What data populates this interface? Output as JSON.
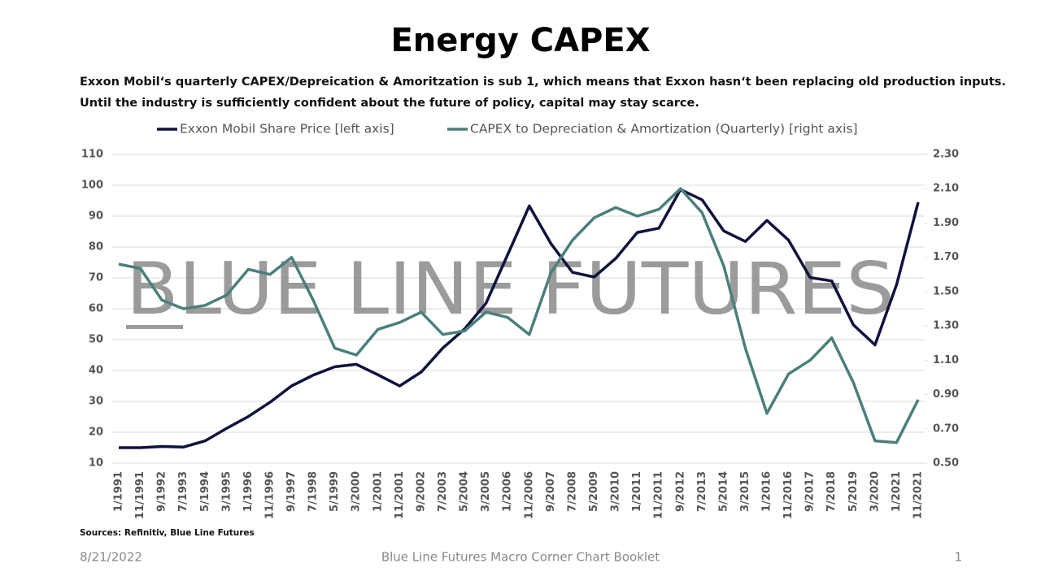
{
  "chart_data": {
    "type": "line",
    "title": "Energy CAPEX",
    "subtitle": [
      "Exxon Mobil‘s quarterly CAPEX/Depreication & Amoritzation is sub 1, which means that Exxon hasn‘t been replacing old production inputs.",
      "Until the industry is sufficiently confident about the future of policy, capital may stay scarce."
    ],
    "watermark": "BLUE LINE FUTURES",
    "categories": [
      "1/1991",
      "11/1991",
      "9/1992",
      "7/1993",
      "5/1994",
      "3/1995",
      "1/1996",
      "11/1996",
      "9/1997",
      "7/1998",
      "5/1999",
      "3/2000",
      "1/2001",
      "11/2001",
      "9/2002",
      "7/2003",
      "5/2004",
      "3/2005",
      "1/2006",
      "11/2006",
      "9/2007",
      "7/2008",
      "5/2009",
      "3/2010",
      "1/2011",
      "11/2011",
      "9/2012",
      "7/2013",
      "5/2014",
      "3/2015",
      "1/2016",
      "11/2016",
      "9/2017",
      "7/2018",
      "5/2019",
      "3/2020",
      "1/2021",
      "11/2021"
    ],
    "series": [
      {
        "name": "Exxon Mobil Share Price [left axis]",
        "color": "#11113d",
        "values": [
          15,
          15,
          15.4,
          15.2,
          17.2,
          21.3,
          25.1,
          29.7,
          35,
          38.5,
          41.2,
          42,
          38.6,
          35,
          39.5,
          47.3,
          53.4,
          61.8,
          77.5,
          93.3,
          81.1,
          71.8,
          70.3,
          76.3,
          84.7,
          86.1,
          98.6,
          95.3,
          85.2,
          81.8,
          88.6,
          82.2,
          70.1,
          69,
          54.8,
          48.3,
          67.8,
          94.5
        ]
      },
      {
        "name": "CAPEX to Depreciation & Amortization (Quarterly) [right axis]",
        "color": "#4a7f7c",
        "axis": "y2",
        "values": [
          1.66,
          1.635,
          1.45,
          1.4,
          1.42,
          1.48,
          1.63,
          1.6,
          1.7,
          1.45,
          1.17,
          1.13,
          1.28,
          1.32,
          1.38,
          1.25,
          1.27,
          1.38,
          1.35,
          1.25,
          1.61,
          1.8,
          1.93,
          1.99,
          1.94,
          1.98,
          2.1,
          1.96,
          1.65,
          1.17,
          0.79,
          1.02,
          1.1,
          1.23,
          0.97,
          0.63,
          0.62,
          0.87
        ]
      }
    ],
    "ylim": [
      10,
      110
    ],
    "yticks": [
      10,
      20,
      30,
      40,
      50,
      60,
      70,
      80,
      90,
      100,
      110
    ],
    "y2lim": [
      0.5,
      2.3
    ],
    "y2ticks": [
      {
        "value": 0.5,
        "label": "0.50"
      },
      {
        "value": 0.7,
        "label": "0.70"
      },
      {
        "value": 0.9,
        "label": "0.90"
      },
      {
        "value": 1.1,
        "label": "1.10"
      },
      {
        "value": 1.3,
        "label": "1.30"
      },
      {
        "value": 1.5,
        "label": "1.50"
      },
      {
        "value": 1.7,
        "label": "1.70"
      },
      {
        "value": 1.9,
        "label": "1.90"
      },
      {
        "value": 2.1,
        "label": "2.10"
      },
      {
        "value": 2.3,
        "label": "2.30"
      }
    ],
    "grid": true,
    "legend": "top"
  },
  "footer": {
    "sources": "Sources: Refinitiv, Blue Line Futures",
    "date": "8/21/2022",
    "booklet": "Blue Line Futures Macro Corner Chart Booklet",
    "page": "1"
  }
}
